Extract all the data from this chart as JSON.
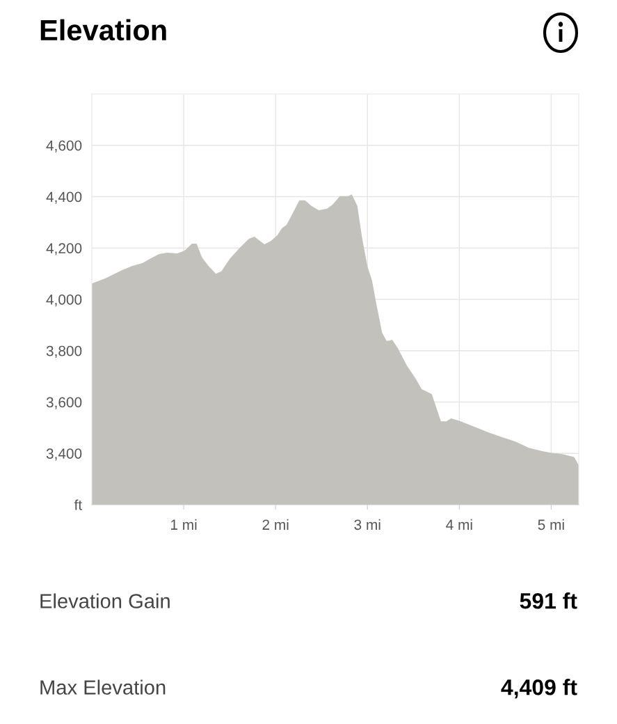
{
  "chart_data": {
    "type": "area",
    "title": "Elevation",
    "x": [
      0,
      0.14,
      0.33,
      0.44,
      0.55,
      0.63,
      0.73,
      0.82,
      0.93,
      1.01,
      1.09,
      1.14,
      1.2,
      1.27,
      1.35,
      1.41,
      1.5,
      1.61,
      1.71,
      1.77,
      1.88,
      1.95,
      2.02,
      2.07,
      2.12,
      2.26,
      2.32,
      2.39,
      2.47,
      2.56,
      2.62,
      2.7,
      2.79,
      2.83,
      2.89,
      2.94,
      3.0,
      3.05,
      3.09,
      3.16,
      3.21,
      3.27,
      3.33,
      3.43,
      3.53,
      3.59,
      3.7,
      3.8,
      3.86,
      3.91,
      4.0,
      4.15,
      4.3,
      4.45,
      4.61,
      4.76,
      4.91,
      5.0,
      5.12,
      5.25,
      5.3
    ],
    "series": [
      {
        "color": "#c2c1bc",
        "values": [
          4062,
          4081,
          4114,
          4130,
          4141,
          4157,
          4176,
          4182,
          4179,
          4190,
          4217,
          4217,
          4163,
          4130,
          4100,
          4109,
          4157,
          4201,
          4236,
          4244,
          4214,
          4228,
          4250,
          4277,
          4290,
          4386,
          4386,
          4364,
          4347,
          4353,
          4369,
          4402,
          4402,
          4409,
          4364,
          4244,
          4128,
          4073,
          3995,
          3870,
          3837,
          3843,
          3810,
          3742,
          3688,
          3650,
          3631,
          3525,
          3525,
          3536,
          3527,
          3506,
          3484,
          3465,
          3446,
          3421,
          3408,
          3402,
          3397,
          3386,
          3354
        ]
      }
    ],
    "xlim": [
      0,
      5.3
    ],
    "xticks": [
      {
        "value": 1,
        "label": "1 mi"
      },
      {
        "value": 2,
        "label": "2 mi"
      },
      {
        "value": 3,
        "label": "3 mi"
      },
      {
        "value": 4,
        "label": "4 mi"
      },
      {
        "value": 5,
        "label": "5 mi"
      }
    ],
    "ylim": [
      3200,
      4800
    ],
    "yticks": [
      {
        "value": 3200,
        "label": "ft"
      },
      {
        "value": 3400,
        "label": "3,400"
      },
      {
        "value": 3600,
        "label": "3,600"
      },
      {
        "value": 3800,
        "label": "3,800"
      },
      {
        "value": 4000,
        "label": "4,000"
      },
      {
        "value": 4200,
        "label": "4,200"
      },
      {
        "value": 4400,
        "label": "4,400"
      },
      {
        "value": 4600,
        "label": "4,600"
      }
    ],
    "grid": true,
    "annotations": [
      "Elevation Gain",
      "591 ft",
      "Max Elevation",
      "4,409 ft"
    ]
  }
}
